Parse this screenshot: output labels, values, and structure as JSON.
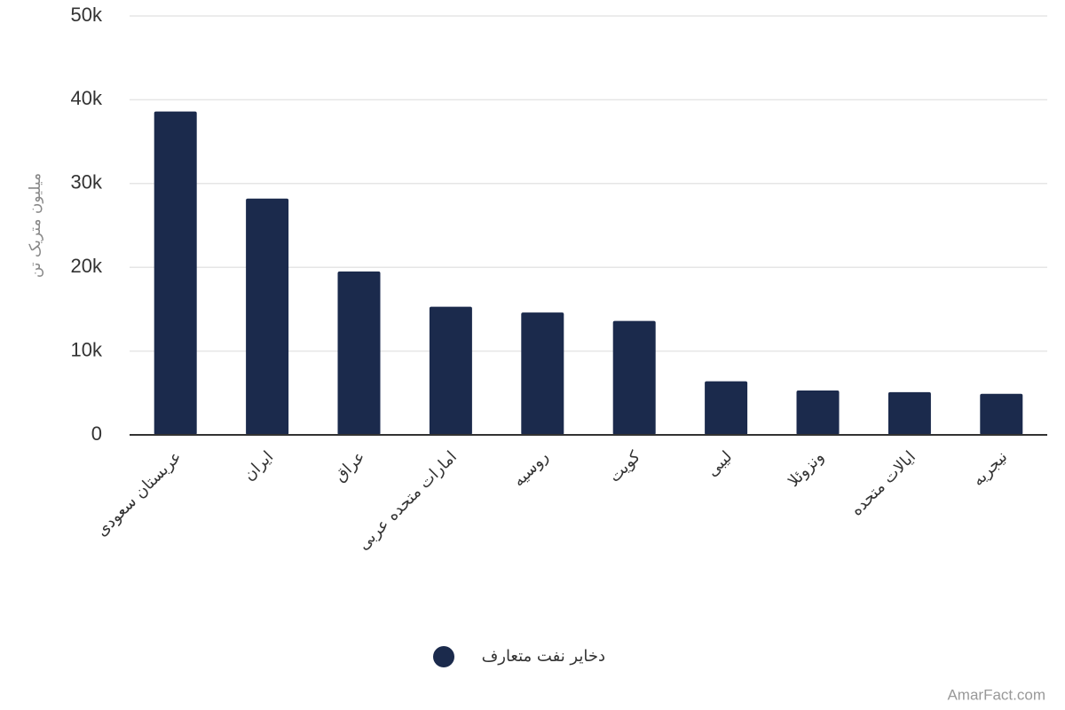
{
  "chart_data": {
    "type": "bar",
    "y_label": "میلیون متریک تن",
    "categories": [
      "عربستان سعودی",
      "ایران",
      "عراق",
      "امارات متحده عربی",
      "روسیه",
      "کویت",
      "لیبی",
      "ونزوئلا",
      "ایالات متحده",
      "نیجریه"
    ],
    "series": [
      {
        "name": "دخایر نفت متعارف",
        "color": "#1b2a4c",
        "values": [
          38600,
          28200,
          19500,
          15300,
          14600,
          13600,
          6400,
          5300,
          5100,
          4900
        ]
      }
    ],
    "ylim": [
      0,
      50000
    ],
    "yticks": [
      0,
      {
        "value": 10000,
        "label": "10k"
      },
      {
        "value": 20000,
        "label": "20k"
      },
      {
        "value": 30000,
        "label": "30k"
      },
      {
        "value": 40000,
        "label": "40k"
      },
      {
        "value": 50000,
        "label": "50k"
      }
    ],
    "grid": true,
    "watermark": "AmarFact.com"
  }
}
